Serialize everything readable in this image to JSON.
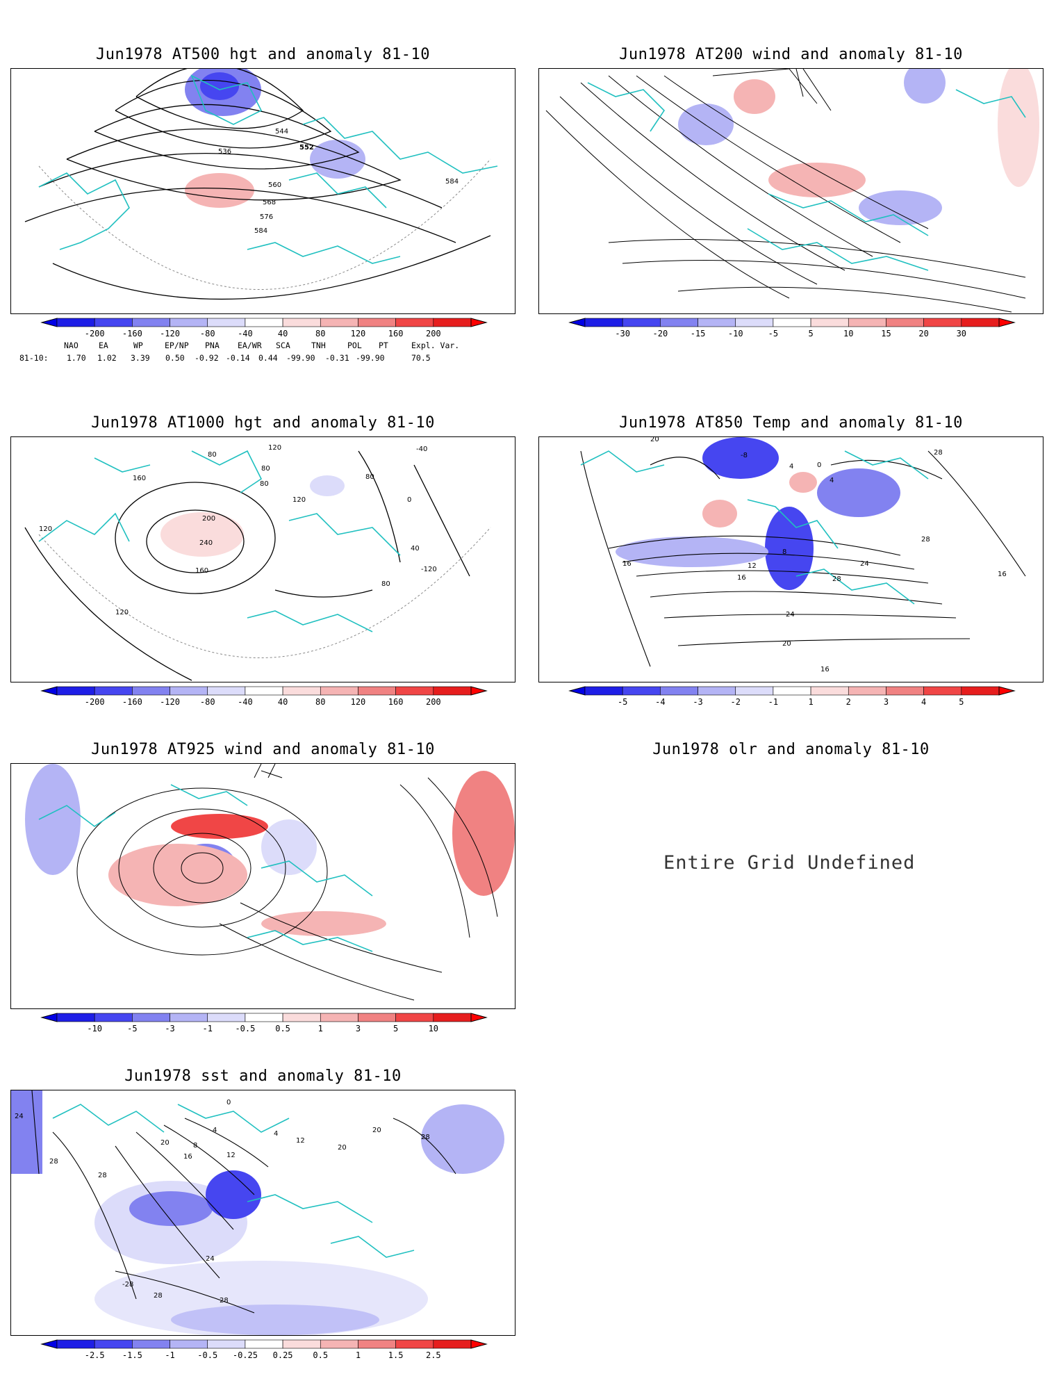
{
  "panels": [
    {
      "id": "p1",
      "title": "Jun1978 AT500 hgt and anomaly 81-10",
      "contour_labels": [
        "544",
        "552",
        "536",
        "560",
        "568",
        "576",
        "584",
        "584"
      ],
      "colorbar": [
        "-200",
        "-160",
        "-120",
        "-80",
        "-40",
        "40",
        "80",
        "120",
        "160",
        "200"
      ]
    },
    {
      "id": "p2",
      "title": "Jun1978 AT200 wind and anomaly 81-10",
      "contour_labels": [],
      "colorbar": [
        "-30",
        "-20",
        "-15",
        "-10",
        "-5",
        "5",
        "10",
        "15",
        "20",
        "30"
      ]
    },
    {
      "id": "p3",
      "title": "Jun1978 AT1000 hgt and anomaly 81-10",
      "contour_labels": [
        "120",
        "80",
        "160",
        "200",
        "240",
        "120",
        "160",
        "120",
        "80",
        "120",
        "80",
        "80",
        "0",
        "-40",
        "40",
        "-120",
        "80"
      ],
      "colorbar": [
        "-200",
        "-160",
        "-120",
        "-80",
        "-40",
        "40",
        "80",
        "120",
        "160",
        "200"
      ]
    },
    {
      "id": "p4",
      "title": "Jun1978 AT850 Temp and anomaly 81-10",
      "contour_labels": [
        "20",
        "-8",
        "4",
        "0",
        "4",
        "28",
        "8",
        "12",
        "16",
        "24",
        "28",
        "16",
        "24",
        "20",
        "16",
        "28",
        "16"
      ],
      "colorbar": [
        "-5",
        "-4",
        "-3",
        "-2",
        "-1",
        "1",
        "2",
        "3",
        "4",
        "5"
      ]
    },
    {
      "id": "p5",
      "title": "Jun1978 AT925 wind and anomaly 81-10",
      "contour_labels": [],
      "colorbar": [
        "-10",
        "-5",
        "-3",
        "-1",
        "-0.5",
        "0.5",
        "1",
        "3",
        "5",
        "10"
      ]
    },
    {
      "id": "p6",
      "title": "Jun1978 olr and anomaly 81-10",
      "message": "Entire Grid Undefined"
    },
    {
      "id": "p7",
      "title": "Jun1978 sst and anomaly 81-10",
      "contour_labels": [
        "24",
        "28",
        "28",
        "20",
        "8",
        "4",
        "0",
        "16",
        "12",
        "4",
        "12",
        "20",
        "20",
        "28",
        "24",
        "-28",
        "28",
        "28"
      ],
      "colorbar": [
        "-2.5",
        "-1.5",
        "-1",
        "-0.5",
        "-0.25",
        "0.25",
        "0.5",
        "1",
        "1.5",
        "2.5"
      ]
    }
  ],
  "teleconnection": {
    "headers": [
      "NAO",
      "EA",
      "WP",
      "EP/NP",
      "PNA",
      "EA/WR",
      "SCA",
      "TNH",
      "POL",
      "PT",
      "Expl. Var."
    ],
    "row_label": "81-10:",
    "values": [
      "1.70",
      "1.02",
      "3.39",
      "0.50",
      "-0.92",
      "-0.14",
      "0.44",
      "-99.90",
      "-0.31",
      "-99.90",
      "70.5"
    ]
  },
  "colors": {
    "coast": "#20c0c0",
    "neg": [
      "#1e1ee6",
      "#4646f0",
      "#8282f0",
      "#b4b4f5",
      "#dcdcfa"
    ],
    "pos": [
      "#fadcdc",
      "#f5b4b4",
      "#f08282",
      "#f04646",
      "#e61e1e"
    ]
  }
}
